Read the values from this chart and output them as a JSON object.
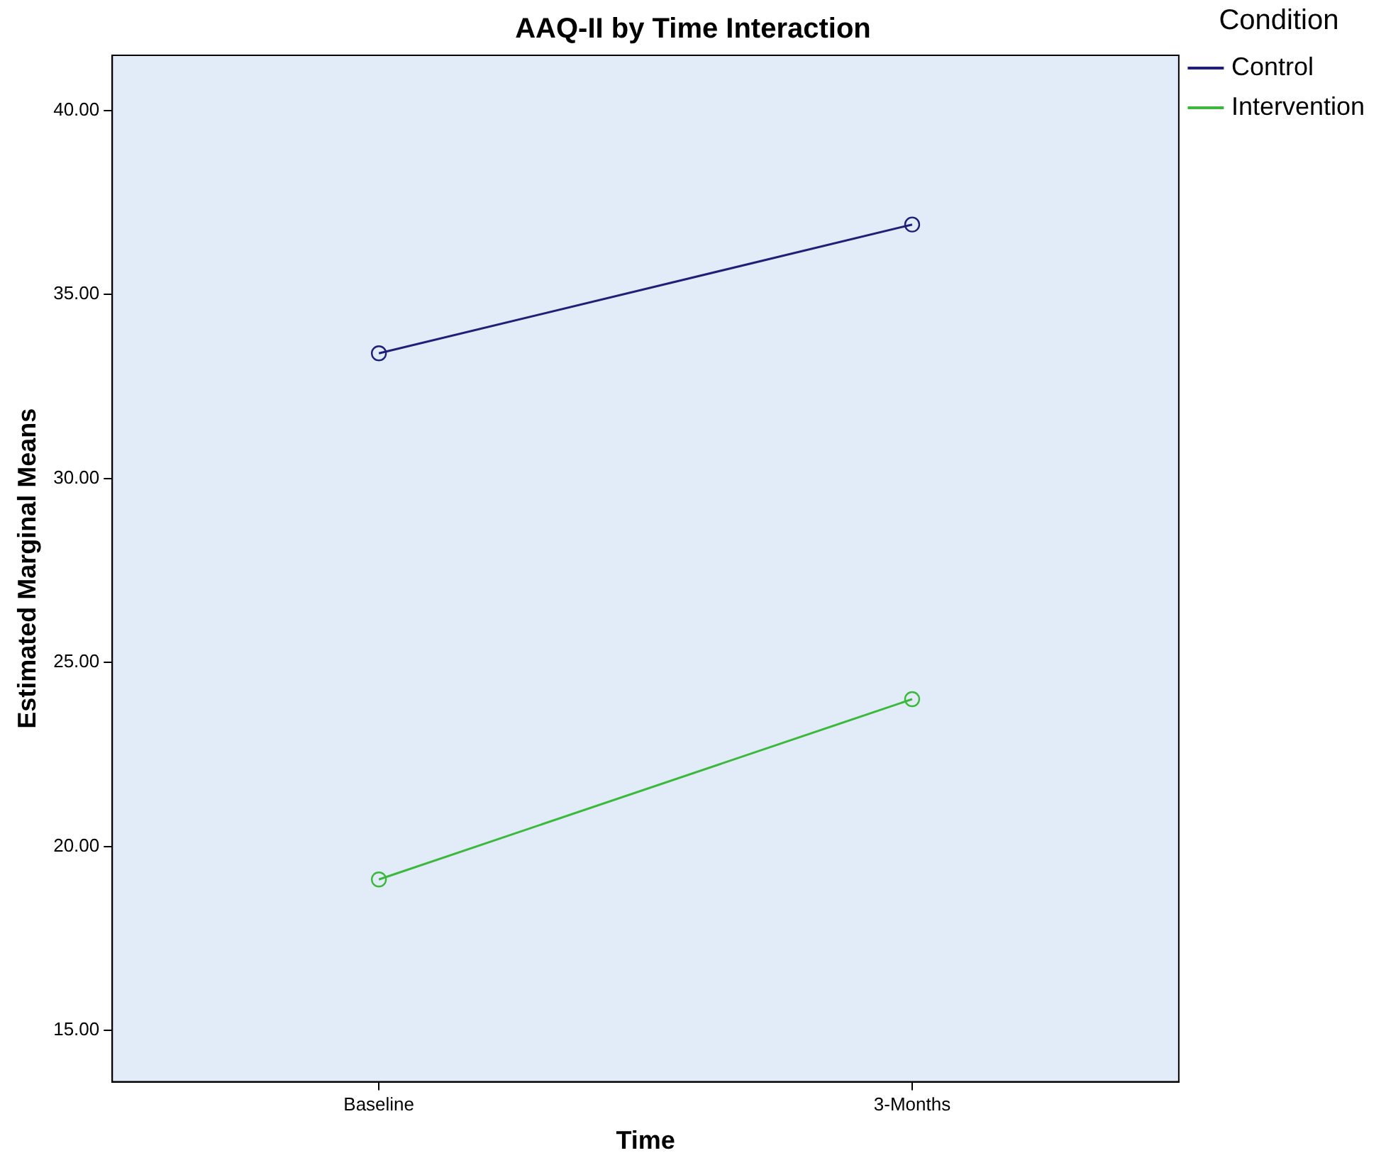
{
  "chart_data": {
    "type": "line",
    "title": "AAQ-II by Time Interaction",
    "xlabel": "Time",
    "ylabel": "Estimated Marginal Means",
    "legend_title": "Condition",
    "categories": [
      "Baseline",
      "3-Months"
    ],
    "series": [
      {
        "name": "Control",
        "color": "#1f1f7a",
        "values": [
          33.4,
          36.9
        ]
      },
      {
        "name": "Intervention",
        "color": "#3cb93c",
        "values": [
          19.1,
          24.0
        ]
      }
    ],
    "ylim": [
      13.6,
      41.5
    ],
    "yticks": [
      {
        "value": 15,
        "label": "15.00"
      },
      {
        "value": 20,
        "label": "20.00"
      },
      {
        "value": 25,
        "label": "25.00"
      },
      {
        "value": 30,
        "label": "30.00"
      },
      {
        "value": 35,
        "label": "35.00"
      },
      {
        "value": 40,
        "label": "40.00"
      }
    ],
    "grid": false,
    "legend": "right",
    "marker": "circle",
    "line_style": "solid"
  }
}
